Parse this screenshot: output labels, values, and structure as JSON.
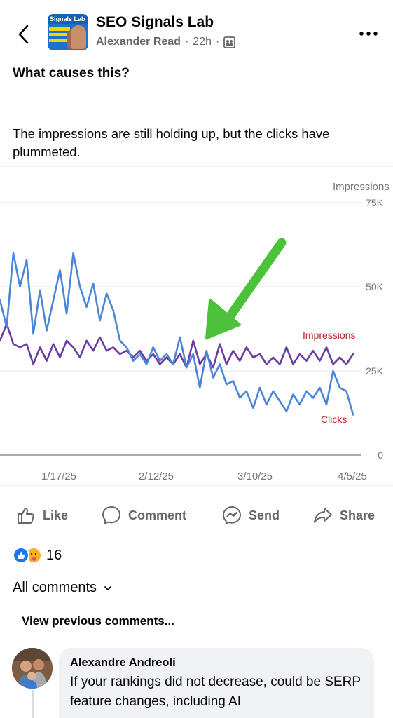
{
  "header": {
    "group_name": "SEO Signals Lab",
    "author": "Alexander Read",
    "separator": "·",
    "time": "22h",
    "separator2": "·",
    "avatar_text": "Signals Lab",
    "back_icon": "chevron-left-icon",
    "more_icon": "more-horizontal-icon",
    "audience_icon": "groups-icon"
  },
  "post": {
    "question": "What causes this?",
    "body": "The impressions are still holding up, but the clicks have plummeted."
  },
  "chart_data": {
    "type": "line",
    "ylabel": "Impressions",
    "ylim": [
      0,
      75000
    ],
    "yticks": [
      "75K",
      "50K",
      "25K",
      "0"
    ],
    "x_ticks": [
      "1/17/25",
      "2/12/25",
      "3/10/25",
      "4/5/25"
    ],
    "annotation": "green-arrow",
    "series": [
      {
        "name": "Impressions",
        "color": "#6a3ea1",
        "values": [
          34000,
          39000,
          33000,
          32000,
          33000,
          27000,
          32000,
          28000,
          33000,
          29000,
          34000,
          32000,
          29000,
          34000,
          31000,
          35000,
          31000,
          32000,
          30000,
          31000,
          29000,
          31000,
          28000,
          30000,
          27000,
          29000,
          27000,
          30000,
          26000,
          34000,
          27000,
          30000,
          26000,
          33000,
          27000,
          31000,
          28000,
          32000,
          29000,
          30000,
          27000,
          29000,
          27000,
          32000,
          27000,
          30000,
          28000,
          31000,
          28000,
          32000,
          27000,
          29000,
          27000,
          30000
        ]
      },
      {
        "name": "Clicks",
        "color": "#4a86d8",
        "values": [
          46000,
          38000,
          60000,
          50000,
          58000,
          36000,
          49000,
          37000,
          46000,
          55000,
          42000,
          60000,
          50000,
          44000,
          51000,
          40000,
          48000,
          43000,
          34000,
          32000,
          28000,
          30000,
          27000,
          32000,
          28000,
          30000,
          27000,
          35000,
          26000,
          30000,
          20000,
          31000,
          23000,
          27000,
          21000,
          22000,
          17000,
          19000,
          14000,
          20000,
          15000,
          19000,
          16000,
          13000,
          18000,
          15000,
          19000,
          17000,
          20000,
          15000,
          25000,
          20000,
          19000,
          12000
        ]
      }
    ]
  },
  "actions": {
    "like": "Like",
    "comment": "Comment",
    "send": "Send",
    "share": "Share"
  },
  "reactions": {
    "count": "16",
    "types": [
      "like-reaction-icon",
      "care-reaction-icon"
    ]
  },
  "comments": {
    "filter_label": "All comments",
    "view_previous": "View previous comments...",
    "items": [
      {
        "name": "Alexandre Andreoli",
        "text": "If your rankings did not decrease, could be SERP feature changes, including AI"
      }
    ]
  }
}
